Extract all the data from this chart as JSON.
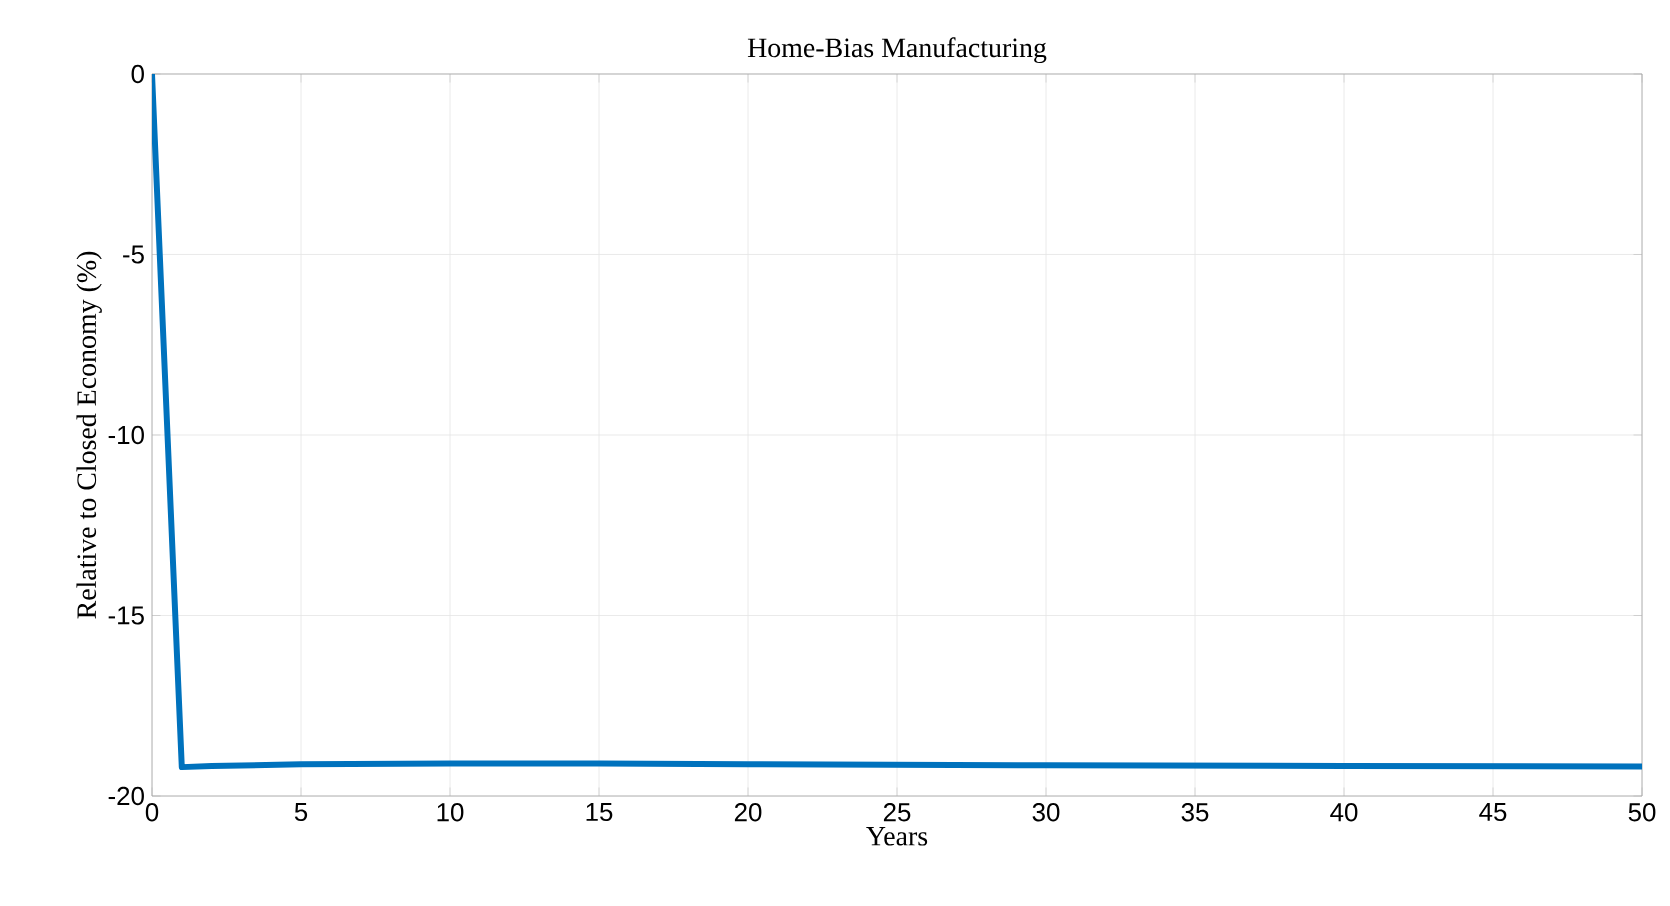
{
  "chart_data": {
    "type": "line",
    "title": "Home-Bias Manufacturing",
    "xlabel": "Years",
    "ylabel": "Relative to Closed Economy (%)",
    "x": [
      0,
      1,
      2,
      5,
      10,
      15,
      20,
      30,
      40,
      50
    ],
    "series": [
      {
        "color": "#0072bd",
        "values": [
          0,
          -19.2,
          -19.17,
          -19.12,
          -19.1,
          -19.1,
          -19.12,
          -19.15,
          -19.17,
          -19.18
        ]
      }
    ],
    "xlim": [
      0,
      50
    ],
    "ylim": [
      -20,
      0
    ],
    "xticks": [
      0,
      5,
      10,
      15,
      20,
      25,
      30,
      35,
      40,
      45,
      50
    ],
    "yticks": [
      -20,
      -15,
      -10,
      -5,
      0
    ],
    "grid": true,
    "line_style": "solid",
    "marker": "none"
  }
}
